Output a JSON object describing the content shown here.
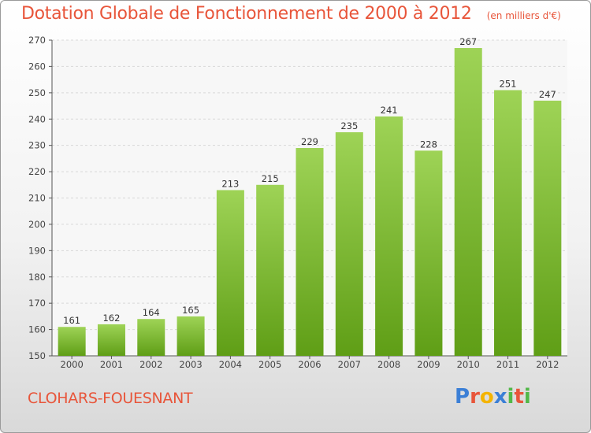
{
  "header": {
    "title": "Dotation Globale de Fonctionnement de 2000 à 2012",
    "unit": "(en milliers d'€)"
  },
  "footer": {
    "commune": "CLOHARS-FOUESNANT",
    "logo": "Proxiti"
  },
  "colors": {
    "title": "#e8553a",
    "bar_top": "#9ed356",
    "bar_bottom": "#5f9e16"
  },
  "chart_data": {
    "type": "bar",
    "title": "Dotation Globale de Fonctionnement de 2000 à 2012",
    "subtitle": "(en milliers d'€)",
    "xlabel": "",
    "ylabel": "",
    "categories": [
      "2000",
      "2001",
      "2002",
      "2003",
      "2004",
      "2005",
      "2006",
      "2007",
      "2008",
      "2009",
      "2010",
      "2011",
      "2012"
    ],
    "values": [
      161,
      162,
      164,
      165,
      213,
      215,
      229,
      235,
      241,
      228,
      267,
      251,
      247
    ],
    "ylim": [
      150,
      270
    ],
    "yticks": [
      150,
      160,
      170,
      180,
      190,
      200,
      210,
      220,
      230,
      240,
      250,
      260,
      270
    ],
    "grid": true,
    "legend": "none"
  }
}
